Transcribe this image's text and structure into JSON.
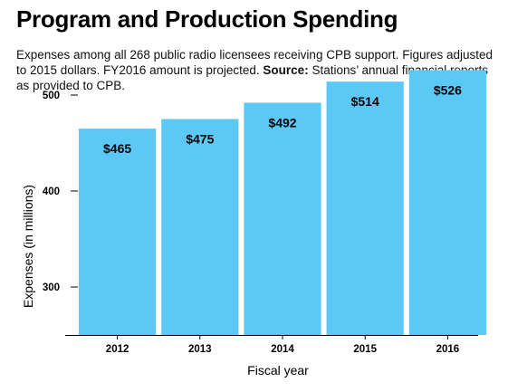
{
  "title": "Program and Production Spending",
  "subtitle": {
    "text": "Expenses among all 268 public radio licensees receiving CPB support. Figures adjusted to 2015 dollars. FY2016 amount is projected. ",
    "source_label": "Source:",
    "source_text": " Stations’ annual financial reports as provided to CPB."
  },
  "chart_data": {
    "type": "bar",
    "categories": [
      "2012",
      "2013",
      "2014",
      "2015",
      "2016"
    ],
    "values": [
      465,
      475,
      492,
      514,
      526
    ],
    "value_labels": [
      "$465",
      "$475",
      "$492",
      "$514",
      "$526"
    ],
    "xlabel": "Fiscal year",
    "ylabel": "Expenses (in millions)",
    "yticks": [
      300,
      400,
      500
    ],
    "ytick_labels": [
      "300",
      "400",
      "500"
    ],
    "ylim": [
      250,
      530
    ],
    "grid": false,
    "bar_color": "#5bc8f5"
  }
}
